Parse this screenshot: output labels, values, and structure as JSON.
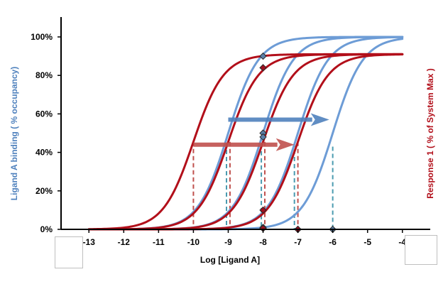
{
  "chart_data": {
    "type": "line",
    "title": "",
    "xlabel": "Log [Ligand A]",
    "ylabel_left": "Ligand A binding ( % occupancy)",
    "ylabel_right": "Response 1 ( % of System Max )",
    "xlim": [
      -13.8,
      -3.2
    ],
    "ylim": [
      0,
      100
    ],
    "x_ticks": [
      -13,
      -12,
      -11,
      -10,
      -9,
      -8,
      -7,
      -6,
      -5,
      -4
    ],
    "x_tick_labels": [
      "-13",
      "-12",
      "-11",
      "-10",
      "-9",
      "-8",
      "-7",
      "-6",
      "-5",
      "-4"
    ],
    "y_ticks": [
      0,
      20,
      40,
      60,
      80,
      100
    ],
    "y_tick_labels": [
      "0%",
      "20%",
      "40%",
      "60%",
      "80%",
      "100%"
    ],
    "colors": {
      "binding": "#6d9cd6",
      "response": "#b20f1a",
      "binding_arrow": "#4f81bd",
      "response_arrow": "#c0504d",
      "axis": "#000000"
    },
    "series": [
      {
        "group": "binding",
        "ec50": -9.0,
        "hill": 1.0,
        "top": 100
      },
      {
        "group": "binding",
        "ec50": -8.0,
        "hill": 1.0,
        "top": 100
      },
      {
        "group": "binding",
        "ec50": -7.0,
        "hill": 1.0,
        "top": 100
      },
      {
        "group": "binding",
        "ec50": -6.0,
        "hill": 1.0,
        "top": 100
      },
      {
        "group": "response",
        "ec50": -10.0,
        "hill": 1.0,
        "top": 91
      },
      {
        "group": "response",
        "ec50": -9.0,
        "hill": 1.0,
        "top": 91
      },
      {
        "group": "response",
        "ec50": -8.0,
        "hill": 1.0,
        "top": 91
      },
      {
        "group": "response",
        "ec50": -7.0,
        "hill": 1.0,
        "top": 91
      }
    ],
    "dashed_drops": [
      {
        "group": "response",
        "x": -10.0,
        "y": 45.5
      },
      {
        "group": "binding",
        "x": -9.05,
        "y": 45
      },
      {
        "group": "response",
        "x": -8.95,
        "y": 45.5
      },
      {
        "group": "binding",
        "x": -8.05,
        "y": 48
      },
      {
        "group": "response",
        "x": -7.95,
        "y": 45.5
      },
      {
        "group": "binding",
        "x": -7.1,
        "y": 45
      },
      {
        "group": "response",
        "x": -7.0,
        "y": 45.5
      },
      {
        "group": "binding",
        "x": -6.0,
        "y": 43
      }
    ],
    "markers": [
      {
        "group": "binding",
        "x": -8.0,
        "y": 90
      },
      {
        "group": "response",
        "x": -8.0,
        "y": 84
      },
      {
        "group": "binding",
        "x": -8.0,
        "y": 50
      },
      {
        "group": "binding",
        "x": -8.0,
        "y": 48
      },
      {
        "group": "response",
        "x": -8.0,
        "y": 10
      },
      {
        "group": "binding",
        "x": -8.0,
        "y": 1
      },
      {
        "group": "response",
        "x": -8.0,
        "y": 0.5
      },
      {
        "group": "binding",
        "x": -7.0,
        "y": 0
      },
      {
        "group": "response",
        "x": -7.0,
        "y": 0
      },
      {
        "group": "binding",
        "x": -6.0,
        "y": 0
      }
    ],
    "arrows": [
      {
        "group": "binding",
        "x_start": -9.0,
        "x_end": -6.1,
        "y": 57
      },
      {
        "group": "response",
        "x_start": -10.0,
        "x_end": -7.1,
        "y": 44
      }
    ],
    "grid": false,
    "legend": "none"
  }
}
